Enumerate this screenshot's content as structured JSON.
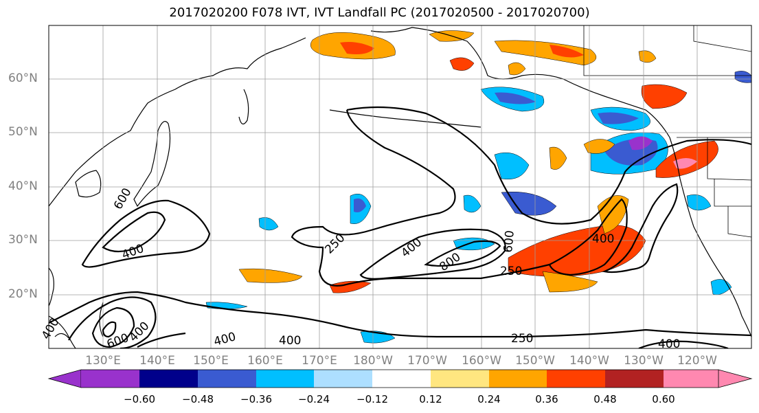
{
  "title": "2017020200 F078 IVT, IVT Landfall PC (2017020500 - 2017020700)",
  "lat_labels": [
    "60°N",
    "50°N",
    "40°N",
    "30°N",
    "20°N"
  ],
  "lon_labels": [
    "130°E",
    "140°E",
    "150°E",
    "160°E",
    "170°E",
    "180°W",
    "170°W",
    "160°W",
    "150°W",
    "140°W",
    "130°W",
    "120°W"
  ],
  "contour_labels": [
    "400",
    "600",
    "400",
    "250",
    "400",
    "800",
    "600",
    "250",
    "400",
    "250",
    "400",
    "400",
    "400",
    "600",
    "400"
  ],
  "colorbar": {
    "colors": [
      "#9932CC",
      "#00008B",
      "#3A5BD1",
      "#00BFFF",
      "#ADDFFF",
      "#FFFFFF",
      "#FFE680",
      "#FFA500",
      "#FF4000",
      "#B22222",
      "#FF88B0"
    ],
    "tick_labels": [
      "−0.60",
      "−0.48",
      "−0.36",
      "−0.24",
      "−0.12",
      "0.12",
      "0.24",
      "0.36",
      "0.48",
      "0.60"
    ]
  }
}
